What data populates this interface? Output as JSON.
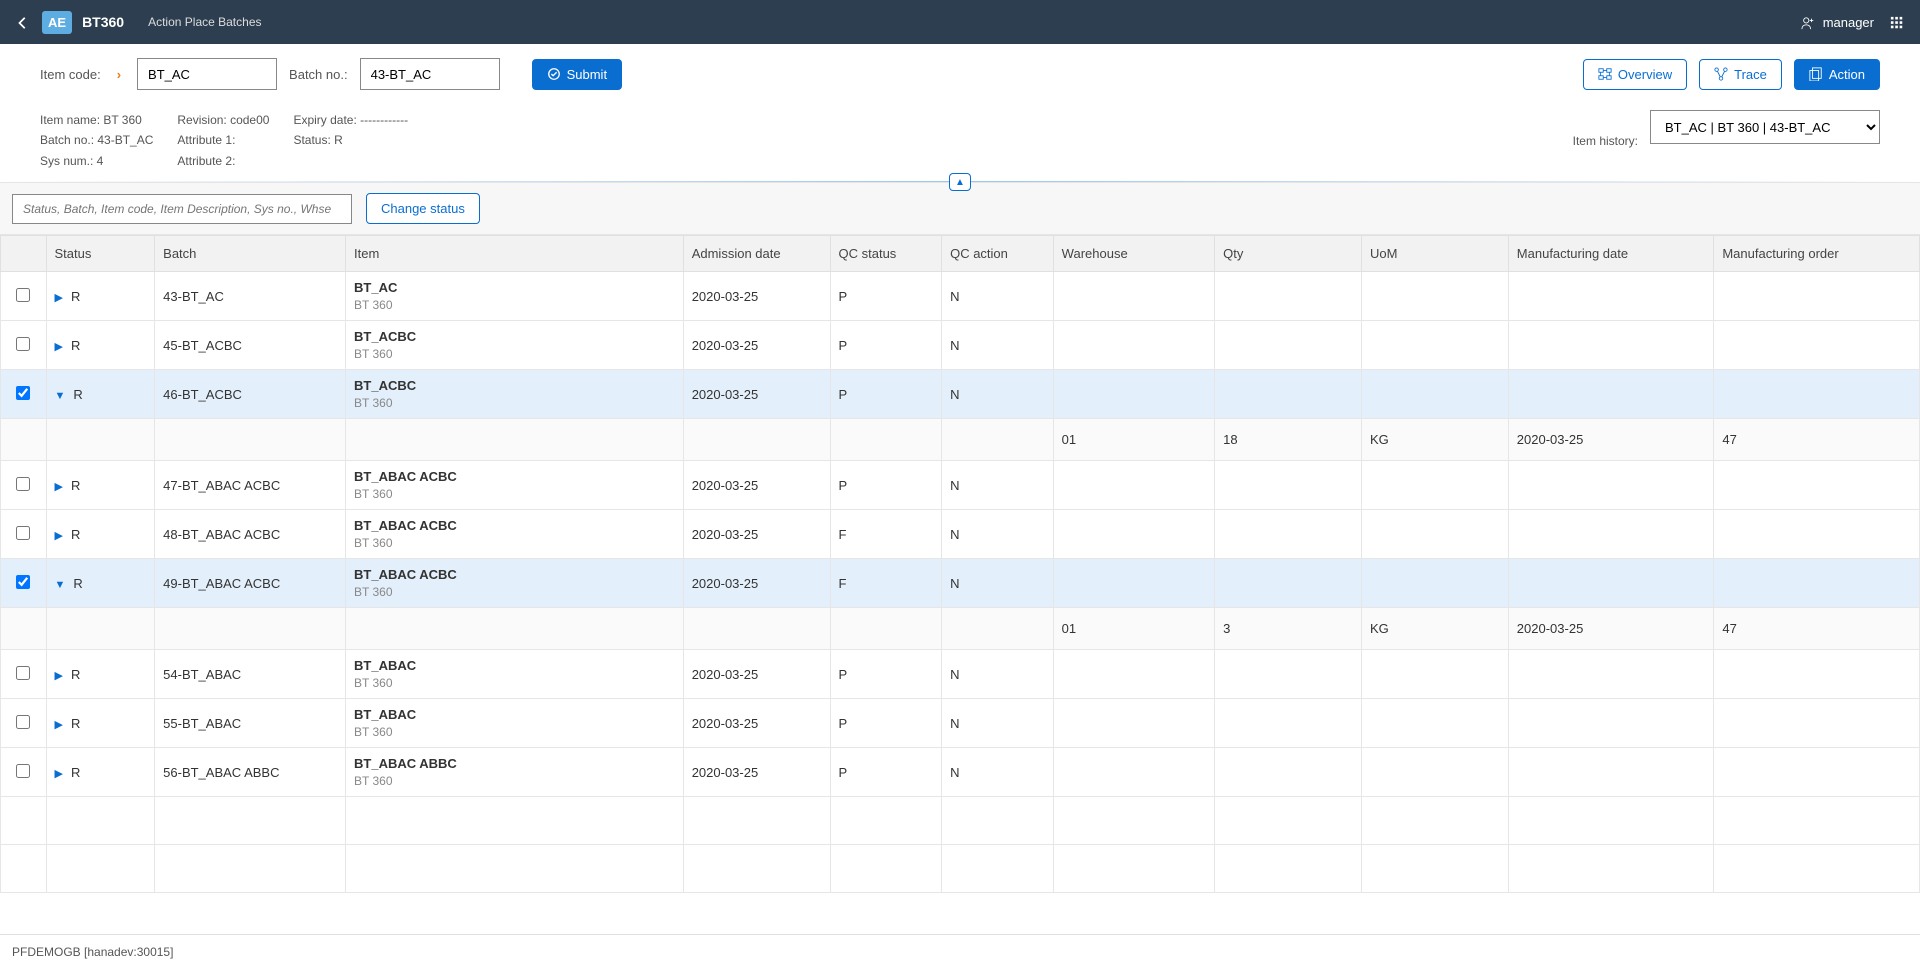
{
  "topbar": {
    "logo": "AE",
    "title": "BT360",
    "subtitle": "Action Place Batches",
    "user": "manager"
  },
  "filter": {
    "item_code_label": "Item code:",
    "item_code_value": "BT_AC",
    "batch_no_label": "Batch no.:",
    "batch_no_value": "43-BT_AC",
    "submit": "Submit",
    "overview": "Overview",
    "trace": "Trace",
    "action": "Action"
  },
  "info": {
    "item_name": "Item name: BT 360",
    "batch_no": "Batch no.: 43-BT_AC",
    "sys_num": "Sys num.: 4",
    "revision": "Revision: code00",
    "attr1": "Attribute 1:",
    "attr2": "Attribute 2:",
    "expiry": "Expiry date: ------------",
    "status": "Status: R",
    "history_label": "Item history:",
    "history_value": "BT_AC | BT 360 | 43-BT_AC"
  },
  "toolbar": {
    "search_placeholder": "Status, Batch, Item code, Item Description, Sys no., Whse",
    "change_status": "Change status"
  },
  "columns": {
    "status": "Status",
    "batch": "Batch",
    "item": "Item",
    "adm": "Admission date",
    "qcs": "QC status",
    "qca": "QC action",
    "whse": "Warehouse",
    "qty": "Qty",
    "uom": "UoM",
    "mdate": "Manufacturing date",
    "morder": "Manufacturing order"
  },
  "rows": [
    {
      "checked": false,
      "expanded": false,
      "selected": false,
      "status": "R",
      "batch": "43-BT_AC",
      "item_code": "BT_AC",
      "item_name": "BT 360",
      "adm": "2020-03-25",
      "qcs": "P",
      "qca": "N"
    },
    {
      "checked": false,
      "expanded": false,
      "selected": false,
      "status": "R",
      "batch": "45-BT_ACBC",
      "item_code": "BT_ACBC",
      "item_name": "BT 360",
      "adm": "2020-03-25",
      "qcs": "P",
      "qca": "N"
    },
    {
      "checked": true,
      "expanded": true,
      "selected": true,
      "status": "R",
      "batch": "46-BT_ACBC",
      "item_code": "BT_ACBC",
      "item_name": "BT 360",
      "adm": "2020-03-25",
      "qcs": "P",
      "qca": "N",
      "detail": {
        "whse": "01",
        "qty": "18",
        "uom": "KG",
        "mdate": "2020-03-25",
        "morder": "47"
      }
    },
    {
      "checked": false,
      "expanded": false,
      "selected": false,
      "status": "R",
      "batch": "47-BT_ABAC ACBC",
      "item_code": "BT_ABAC ACBC",
      "item_name": "BT 360",
      "adm": "2020-03-25",
      "qcs": "P",
      "qca": "N"
    },
    {
      "checked": false,
      "expanded": false,
      "selected": false,
      "status": "R",
      "batch": "48-BT_ABAC ACBC",
      "item_code": "BT_ABAC ACBC",
      "item_name": "BT 360",
      "adm": "2020-03-25",
      "qcs": "F",
      "qca": "N"
    },
    {
      "checked": true,
      "expanded": true,
      "selected": true,
      "status": "R",
      "batch": "49-BT_ABAC ACBC",
      "item_code": "BT_ABAC ACBC",
      "item_name": "BT 360",
      "adm": "2020-03-25",
      "qcs": "F",
      "qca": "N",
      "detail": {
        "whse": "01",
        "qty": "3",
        "uom": "KG",
        "mdate": "2020-03-25",
        "morder": "47"
      }
    },
    {
      "checked": false,
      "expanded": false,
      "selected": false,
      "status": "R",
      "batch": "54-BT_ABAC",
      "item_code": "BT_ABAC",
      "item_name": "BT 360",
      "adm": "2020-03-25",
      "qcs": "P",
      "qca": "N"
    },
    {
      "checked": false,
      "expanded": false,
      "selected": false,
      "status": "R",
      "batch": "55-BT_ABAC",
      "item_code": "BT_ABAC",
      "item_name": "BT 360",
      "adm": "2020-03-25",
      "qcs": "P",
      "qca": "N"
    },
    {
      "checked": false,
      "expanded": false,
      "selected": false,
      "status": "R",
      "batch": "56-BT_ABAC ABBC",
      "item_code": "BT_ABAC ABBC",
      "item_name": "BT 360",
      "adm": "2020-03-25",
      "qcs": "P",
      "qca": "N"
    }
  ],
  "footer": "PFDEMOGB [hanadev:30015]"
}
